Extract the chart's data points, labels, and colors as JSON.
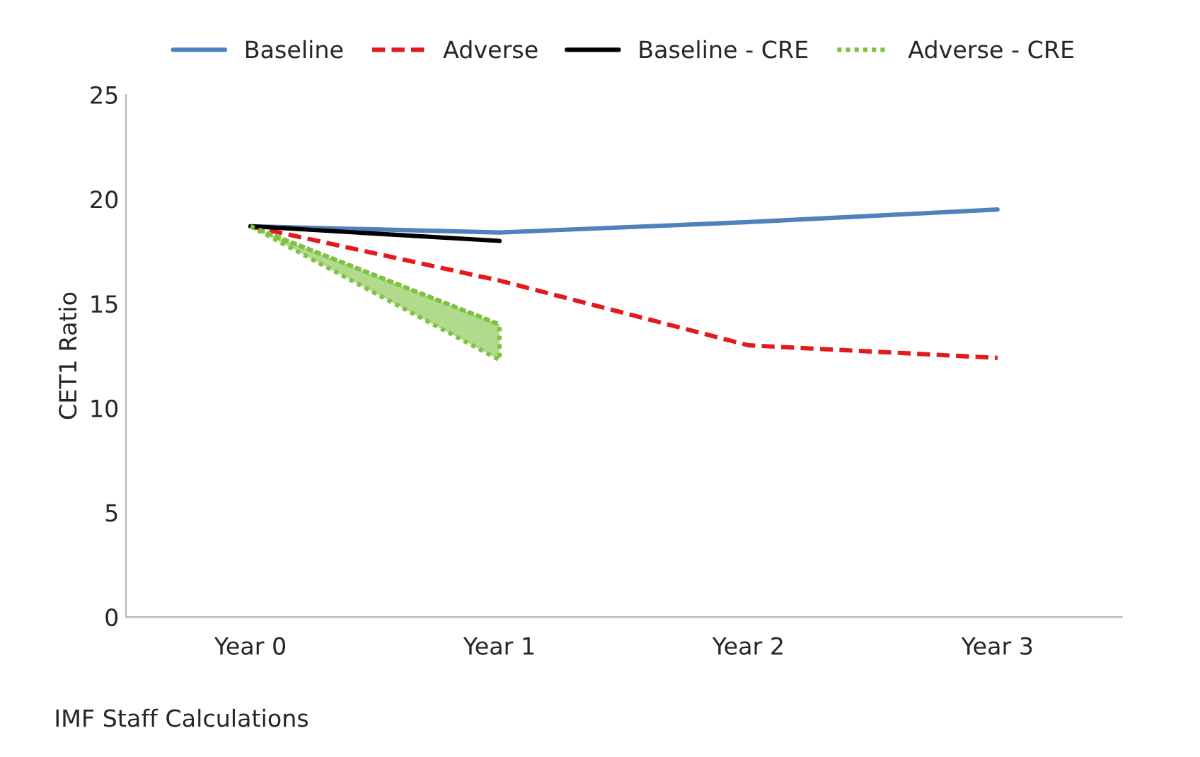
{
  "chart_data": {
    "type": "line",
    "ylabel": "CET1 Ratio",
    "categories": [
      "Year 0",
      "Year 1",
      "Year 2",
      "Year 3"
    ],
    "series": [
      {
        "name": "Baseline",
        "color": "#4f81bd",
        "values": [
          18.7,
          18.4,
          18.9,
          19.5
        ],
        "line_style": "solid"
      },
      {
        "name": "Adverse",
        "color": "#e31a1c",
        "values": [
          18.7,
          16.1,
          13.0,
          12.4
        ],
        "line_style": "dashed"
      },
      {
        "name": "Baseline - CRE",
        "color": "#000000",
        "values": [
          18.7,
          18.0,
          null,
          null
        ],
        "line_style": "solid"
      },
      {
        "name": "Adverse - CRE",
        "color": "#7fc241",
        "values": [
          18.7,
          14.0,
          null,
          null
        ],
        "lower": [
          18.7,
          12.3,
          null,
          null
        ],
        "upper": [
          18.7,
          14.0,
          null,
          null
        ],
        "line_style": "dotted"
      }
    ],
    "ylim": [
      0,
      25
    ],
    "yticks": [
      0,
      5,
      10,
      15,
      20,
      25
    ],
    "grid": false,
    "legend": "top",
    "marker": "none",
    "annotations": [
      "IMF Staff Calculations"
    ]
  }
}
